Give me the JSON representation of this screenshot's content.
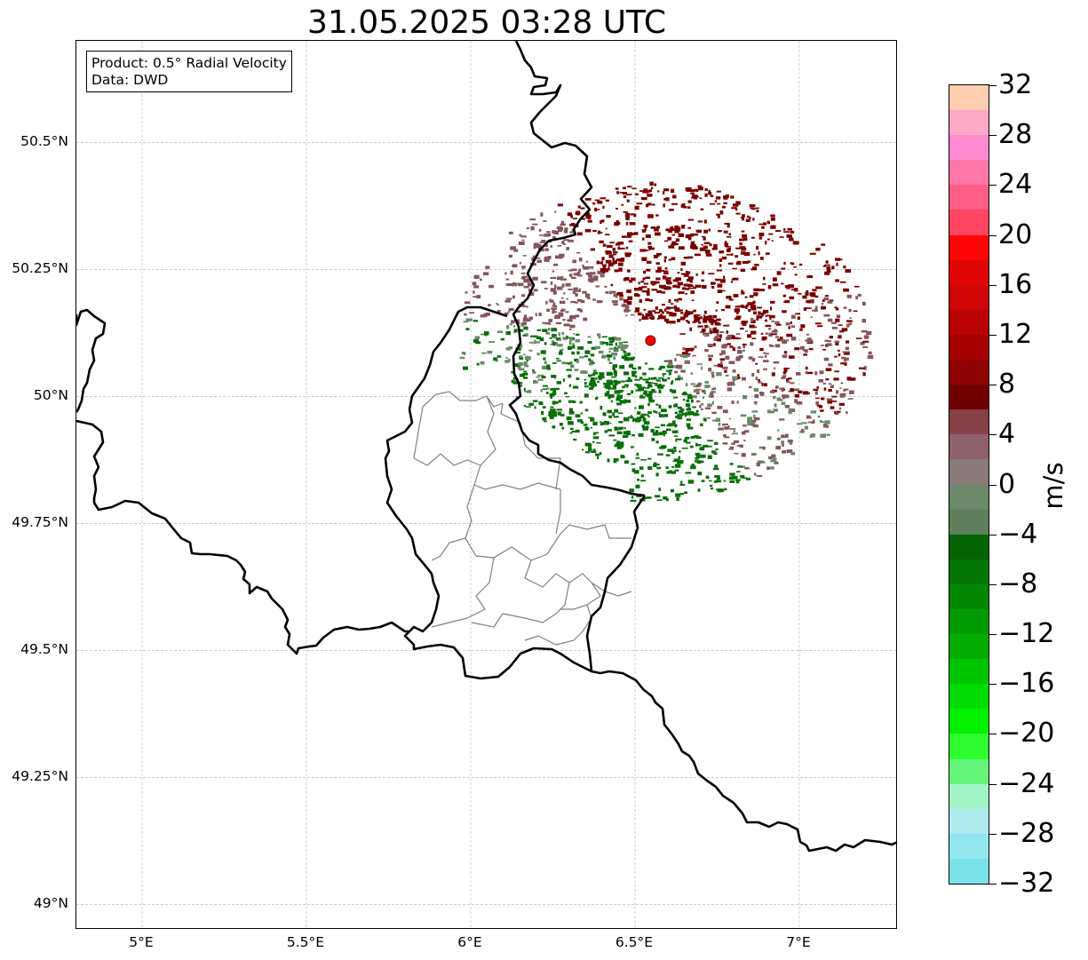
{
  "title": "31.05.2025 03:28 UTC",
  "info_box": {
    "product": "Product: 0.5° Radial Velocity",
    "source": "Data: DWD"
  },
  "map": {
    "lon_range": [
      4.8,
      7.3
    ],
    "lat_range": [
      48.95,
      50.7
    ],
    "lat_ticks": [
      {
        "value": 50.5,
        "label": "50.5°N"
      },
      {
        "value": 50.25,
        "label": "50.25°N"
      },
      {
        "value": 50.0,
        "label": "50°N"
      },
      {
        "value": 49.75,
        "label": "49.75°N"
      },
      {
        "value": 49.5,
        "label": "49.5°N"
      },
      {
        "value": 49.25,
        "label": "49.25°N"
      },
      {
        "value": 49.0,
        "label": "49°N"
      }
    ],
    "lon_ticks": [
      {
        "value": 5.0,
        "label": "5°E"
      },
      {
        "value": 5.5,
        "label": "5.5°E"
      },
      {
        "value": 6.0,
        "label": "6°E"
      },
      {
        "value": 6.5,
        "label": "6.5°E"
      },
      {
        "value": 7.0,
        "label": "7°E"
      }
    ],
    "radar_site": {
      "lon": 6.547,
      "lat": 50.11,
      "color": "#ff0000"
    },
    "grid_color": "#b0b0b0"
  },
  "colorbar": {
    "label": "m/s",
    "min": -32,
    "max": 32,
    "tick_labels": [
      "32",
      "28",
      "24",
      "20",
      "16",
      "12",
      "8",
      "4",
      "0",
      "−4",
      "−8",
      "−12",
      "−16",
      "−20",
      "−24",
      "−28",
      "−32"
    ],
    "colors_top_to_bottom": [
      "#ffcdb0",
      "#ffa8c5",
      "#ff8ad0",
      "#ff76a8",
      "#ff5e86",
      "#ff4560",
      "#ff0505",
      "#e00608",
      "#cf0507",
      "#bb0306",
      "#a60204",
      "#900102",
      "#700000",
      "#864148",
      "#8f626e",
      "#8a7b7a",
      "#6b896b",
      "#5e805c",
      "#046404",
      "#037603",
      "#028802",
      "#029a02",
      "#02ad02",
      "#01c401",
      "#00dc00",
      "#00f000",
      "#2dfe2d",
      "#66f57a",
      "#a2f3c8",
      "#b0ebf0",
      "#90e8ed",
      "#79e2e8"
    ]
  },
  "velocity_colors": {
    "dark_red": "#7a0000",
    "mauve": "#86555f",
    "grey_green": "#6a8a68",
    "green": "#0a6e0a"
  }
}
